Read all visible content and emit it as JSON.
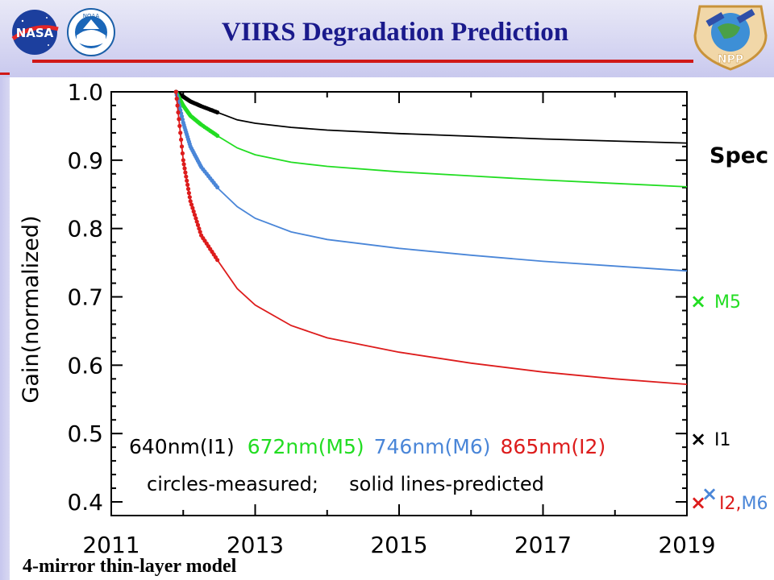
{
  "slide": {
    "title": "VIIRS Degradation Prediction",
    "footer_note": "4-mirror thin-layer model",
    "logos": {
      "left": "NASA",
      "middle": "NOAA",
      "right": "NPP"
    }
  },
  "chart_data": {
    "type": "line",
    "title": "",
    "xlabel": "",
    "ylabel": "Gain(normalized)",
    "xlim": [
      2011,
      2019
    ],
    "ylim": [
      0.38,
      1.0
    ],
    "x_ticks": [
      "2011",
      "2013",
      "2015",
      "2017",
      "2019"
    ],
    "y_ticks": [
      "0.4",
      "0.5",
      "0.6",
      "0.7",
      "0.8",
      "0.9",
      "1.0"
    ],
    "grid": false,
    "series": [
      {
        "name": "640nm(I1)",
        "color": "#000000",
        "x": [
          2011.9,
          2012.0,
          2012.1,
          2012.25,
          2012.5,
          2012.75,
          2013.0,
          2013.5,
          2014.0,
          2015.0,
          2016.0,
          2017.0,
          2018.0,
          2019.0
        ],
        "values": [
          1.0,
          0.993,
          0.986,
          0.979,
          0.969,
          0.959,
          0.954,
          0.948,
          0.944,
          0.939,
          0.935,
          0.931,
          0.928,
          0.925
        ],
        "measured_until": 2012.5
      },
      {
        "name": "672nm(M5)",
        "color": "#22dd22",
        "x": [
          2011.9,
          2012.0,
          2012.1,
          2012.25,
          2012.5,
          2012.75,
          2013.0,
          2013.5,
          2014.0,
          2015.0,
          2016.0,
          2017.0,
          2018.0,
          2019.0
        ],
        "values": [
          1.0,
          0.98,
          0.965,
          0.952,
          0.934,
          0.918,
          0.908,
          0.897,
          0.891,
          0.883,
          0.877,
          0.871,
          0.866,
          0.861
        ],
        "measured_until": 2012.5
      },
      {
        "name": "746nm(M6)",
        "color": "#4a86d8",
        "x": [
          2011.9,
          2012.0,
          2012.1,
          2012.25,
          2012.5,
          2012.75,
          2013.0,
          2013.5,
          2014.0,
          2015.0,
          2016.0,
          2017.0,
          2018.0,
          2019.0
        ],
        "values": [
          1.0,
          0.955,
          0.92,
          0.89,
          0.857,
          0.832,
          0.815,
          0.795,
          0.784,
          0.771,
          0.761,
          0.752,
          0.745,
          0.738
        ],
        "measured_until": 2012.5
      },
      {
        "name": "865nm(I2)",
        "color": "#dd1c1c",
        "x": [
          2011.9,
          2012.0,
          2012.1,
          2012.25,
          2012.5,
          2012.75,
          2013.0,
          2013.5,
          2014.0,
          2015.0,
          2016.0,
          2017.0,
          2018.0,
          2019.0
        ],
        "values": [
          1.0,
          0.9,
          0.84,
          0.79,
          0.75,
          0.712,
          0.688,
          0.658,
          0.64,
          0.619,
          0.603,
          0.59,
          0.58,
          0.572
        ],
        "measured_until": 2012.5
      }
    ],
    "spec_markers": [
      {
        "label": "Spec",
        "value": null,
        "color": "#000000"
      },
      {
        "label": "M5",
        "value": 0.695,
        "color": "#22dd22"
      },
      {
        "label": "I1",
        "value": 0.493,
        "color": "#000000"
      },
      {
        "label": "I2,M6",
        "value": 0.4,
        "color": "#dd1c1c",
        "second_color": "#4a86d8"
      }
    ],
    "annotations": {
      "legend_line": [
        "640nm(I1)",
        "672nm(M5)",
        "746nm(M6)",
        "865nm(I2)"
      ],
      "note": "circles-measured;     solid lines-predicted"
    }
  }
}
